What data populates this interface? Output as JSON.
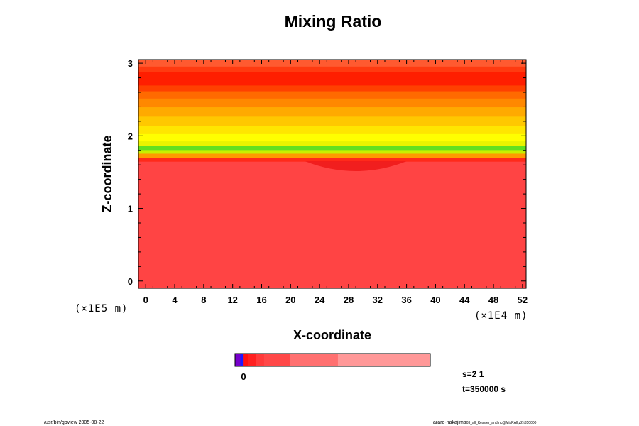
{
  "chart_data": {
    "type": "heatmap",
    "title": "Mixing Ratio",
    "xlabel": "X-coordinate",
    "ylabel": "Z-coordinate",
    "x_unit": "(×1E4 m)",
    "y_unit": "(×1E5 m)",
    "xlim": [
      -1,
      52.5
    ],
    "ylim": [
      -0.1,
      3.05
    ],
    "x_ticks": [
      0,
      4,
      8,
      12,
      16,
      20,
      24,
      28,
      32,
      36,
      40,
      44,
      48,
      52
    ],
    "y_ticks": [
      0,
      1,
      2,
      3
    ],
    "field": {
      "description_bands_bottom_to_top": true,
      "bands": [
        {
          "z_from": -0.1,
          "z_to": 1.65,
          "color": "#ff4444"
        },
        {
          "z_from": 1.65,
          "z_to": 1.7,
          "color": "#ff2a1a"
        },
        {
          "z_from": 1.7,
          "z_to": 1.76,
          "color": "#ff9a00"
        },
        {
          "z_from": 1.76,
          "z_to": 1.81,
          "color": "#c8f000"
        },
        {
          "z_from": 1.81,
          "z_to": 1.87,
          "color": "#60e020"
        },
        {
          "z_from": 1.87,
          "z_to": 1.93,
          "color": "#e8f400"
        },
        {
          "z_from": 1.93,
          "z_to": 2.03,
          "color": "#ffff00"
        },
        {
          "z_from": 2.03,
          "z_to": 2.14,
          "color": "#ffe600"
        },
        {
          "z_from": 2.14,
          "z_to": 2.27,
          "color": "#ffc800"
        },
        {
          "z_from": 2.27,
          "z_to": 2.4,
          "color": "#ffaa00"
        },
        {
          "z_from": 2.4,
          "z_to": 2.52,
          "color": "#ff8800"
        },
        {
          "z_from": 2.52,
          "z_to": 2.62,
          "color": "#ff6a00"
        },
        {
          "z_from": 2.62,
          "z_to": 2.7,
          "color": "#ff4000"
        },
        {
          "z_from": 2.7,
          "z_to": 2.88,
          "color": "#ff1e00"
        },
        {
          "z_from": 2.88,
          "z_to": 2.96,
          "color": "#ff3a10"
        },
        {
          "z_from": 2.96,
          "z_to": 3.05,
          "color": "#ff5a30"
        }
      ],
      "dip_region": {
        "x_from": 22,
        "x_to": 36,
        "z_min": 1.48,
        "color": "#ee1818"
      }
    },
    "colorbar": {
      "segments": [
        {
          "color": "#7700cc",
          "weight": 2
        },
        {
          "color": "#1a1aff",
          "weight": 1
        },
        {
          "color": "#ff1010",
          "weight": 2
        },
        {
          "color": "#ff2020",
          "weight": 3
        },
        {
          "color": "#ff3a3a",
          "weight": 3
        },
        {
          "color": "#ff4848",
          "weight": 10
        },
        {
          "color": "#ff7070",
          "weight": 18
        },
        {
          "color": "#ff9898",
          "weight": 35
        }
      ],
      "zero_label": "0"
    }
  },
  "info": {
    "s_label": "s=2 1",
    "t_label": "t=350000 s"
  },
  "footer": {
    "left": "/usr/bin/gpview 2005-08-22",
    "right_main": "arare-nakajima",
    "right_small": "03_all_Kessler_and.nc@MixRAll,z2,t350000"
  }
}
